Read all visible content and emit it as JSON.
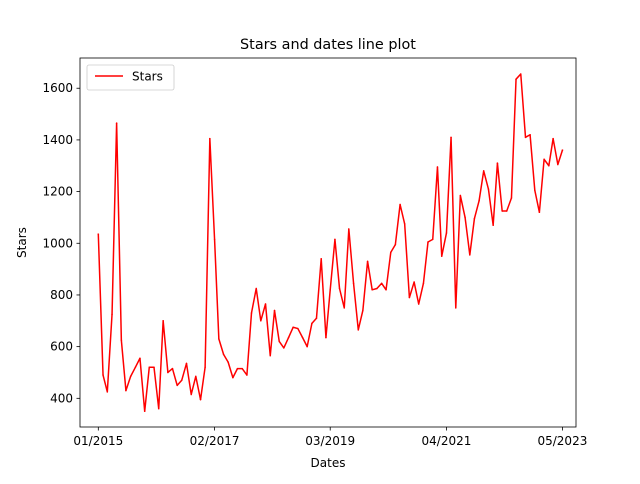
{
  "chart_data": {
    "type": "line",
    "title": "Stars and dates line plot",
    "xlabel": "Dates",
    "ylabel": "Stars",
    "xlim": [
      "2014-09-03",
      "2023-07-29"
    ],
    "ylim": [
      289,
      1717
    ],
    "x_ticks": [
      {
        "date": "2015-01-01",
        "label": "01/2015"
      },
      {
        "date": "2017-02-01",
        "label": "02/2017"
      },
      {
        "date": "2019-03-01",
        "label": "03/2019"
      },
      {
        "date": "2021-04-01",
        "label": "04/2021"
      },
      {
        "date": "2023-05-01",
        "label": "05/2023"
      }
    ],
    "y_ticks": [
      400,
      600,
      800,
      1000,
      1200,
      1400,
      1600
    ],
    "grid": false,
    "legend": "top-left",
    "series": [
      {
        "name": "Stars",
        "color": "#ff0000",
        "x": [
          "2015-01-01",
          "2015-02-01",
          "2015-03-01",
          "2015-04-01",
          "2015-05-01",
          "2015-06-01",
          "2015-07-01",
          "2015-08-01",
          "2015-09-01",
          "2015-10-01",
          "2015-11-01",
          "2015-12-01",
          "2016-01-01",
          "2016-02-01",
          "2016-03-01",
          "2016-04-01",
          "2016-05-01",
          "2016-06-01",
          "2016-07-01",
          "2016-08-01",
          "2016-09-01",
          "2016-10-01",
          "2016-11-01",
          "2016-12-01",
          "2017-01-01",
          "2017-02-01",
          "2017-03-01",
          "2017-04-01",
          "2017-05-01",
          "2017-06-01",
          "2017-07-01",
          "2017-08-01",
          "2017-09-01",
          "2017-10-01",
          "2017-11-01",
          "2017-12-01",
          "2018-01-01",
          "2018-02-01",
          "2018-03-01",
          "2018-04-01",
          "2018-05-01",
          "2018-06-01",
          "2018-07-01",
          "2018-08-01",
          "2018-09-01",
          "2018-10-01",
          "2018-11-01",
          "2018-12-01",
          "2019-01-01",
          "2019-02-01",
          "2019-03-01",
          "2019-04-01",
          "2019-05-01",
          "2019-06-01",
          "2019-07-01",
          "2019-08-01",
          "2019-09-01",
          "2019-10-01",
          "2019-11-01",
          "2019-12-01",
          "2020-01-01",
          "2020-02-01",
          "2020-03-01",
          "2020-04-01",
          "2020-05-01",
          "2020-06-01",
          "2020-07-01",
          "2020-08-01",
          "2020-09-01",
          "2020-10-01",
          "2020-11-01",
          "2020-12-01",
          "2021-01-01",
          "2021-02-01",
          "2021-03-01",
          "2021-04-01",
          "2021-05-01",
          "2021-06-01",
          "2021-07-01",
          "2021-08-01",
          "2021-09-01",
          "2021-10-01",
          "2021-11-01",
          "2021-12-01",
          "2022-01-01",
          "2022-02-01",
          "2022-03-01",
          "2022-04-01",
          "2022-05-01",
          "2022-06-01",
          "2022-07-01",
          "2022-08-01",
          "2022-09-01",
          "2022-10-01",
          "2022-11-01",
          "2022-12-01",
          "2023-01-01",
          "2023-02-01",
          "2023-03-01",
          "2023-04-01",
          "2023-05-01"
        ],
        "y": [
          1035,
          490,
          425,
          725,
          1465,
          625,
          430,
          485,
          520,
          555,
          350,
          520,
          520,
          360,
          700,
          500,
          515,
          450,
          470,
          535,
          415,
          485,
          395,
          520,
          1405,
          1015,
          630,
          570,
          540,
          480,
          515,
          515,
          490,
          730,
          825,
          700,
          765,
          565,
          740,
          620,
          595,
          635,
          675,
          670,
          635,
          600,
          690,
          710,
          940,
          635,
          820,
          1015,
          825,
          750,
          1055,
          845,
          665,
          740,
          930,
          820,
          825,
          845,
          820,
          965,
          995,
          1150,
          1075,
          790,
          850,
          765,
          845,
          1005,
          1015,
          1295,
          950,
          1040,
          1410,
          750,
          1185,
          1100,
          955,
          1095,
          1165,
          1280,
          1210,
          1070,
          1310,
          1125,
          1125,
          1175,
          1635,
          1655,
          1410,
          1420,
          1205,
          1120,
          1325,
          1300,
          1405,
          1305,
          1360
        ]
      }
    ]
  }
}
